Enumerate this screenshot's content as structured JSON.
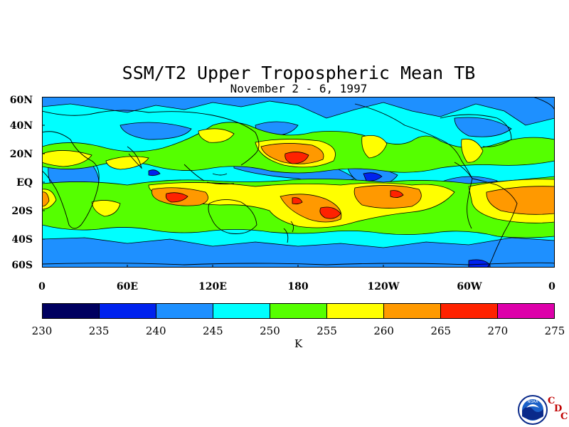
{
  "title": "SSM/T2 Upper Tropospheric Mean TB",
  "subtitle": "November 2 - 6, 1997",
  "lat_labels": [
    "60N",
    "40N",
    "20N",
    "EQ",
    "20S",
    "40S",
    "60S"
  ],
  "lon_labels": [
    "0",
    "60E",
    "120E",
    "180",
    "120W",
    "60W",
    "0"
  ],
  "colorbar": {
    "ticks": [
      "230",
      "235",
      "240",
      "245",
      "250",
      "255",
      "260",
      "265",
      "270",
      "275"
    ],
    "colors": [
      "#000060",
      "#0022ee",
      "#1e90ff",
      "#00ffff",
      "#55ff00",
      "#ffff00",
      "#ff9900",
      "#ff2200",
      "#dd00aa"
    ],
    "units": "K"
  },
  "logo": {
    "name": "noaa-logo",
    "text": "NOAA",
    "letters": [
      "C",
      "D",
      "C"
    ]
  }
}
